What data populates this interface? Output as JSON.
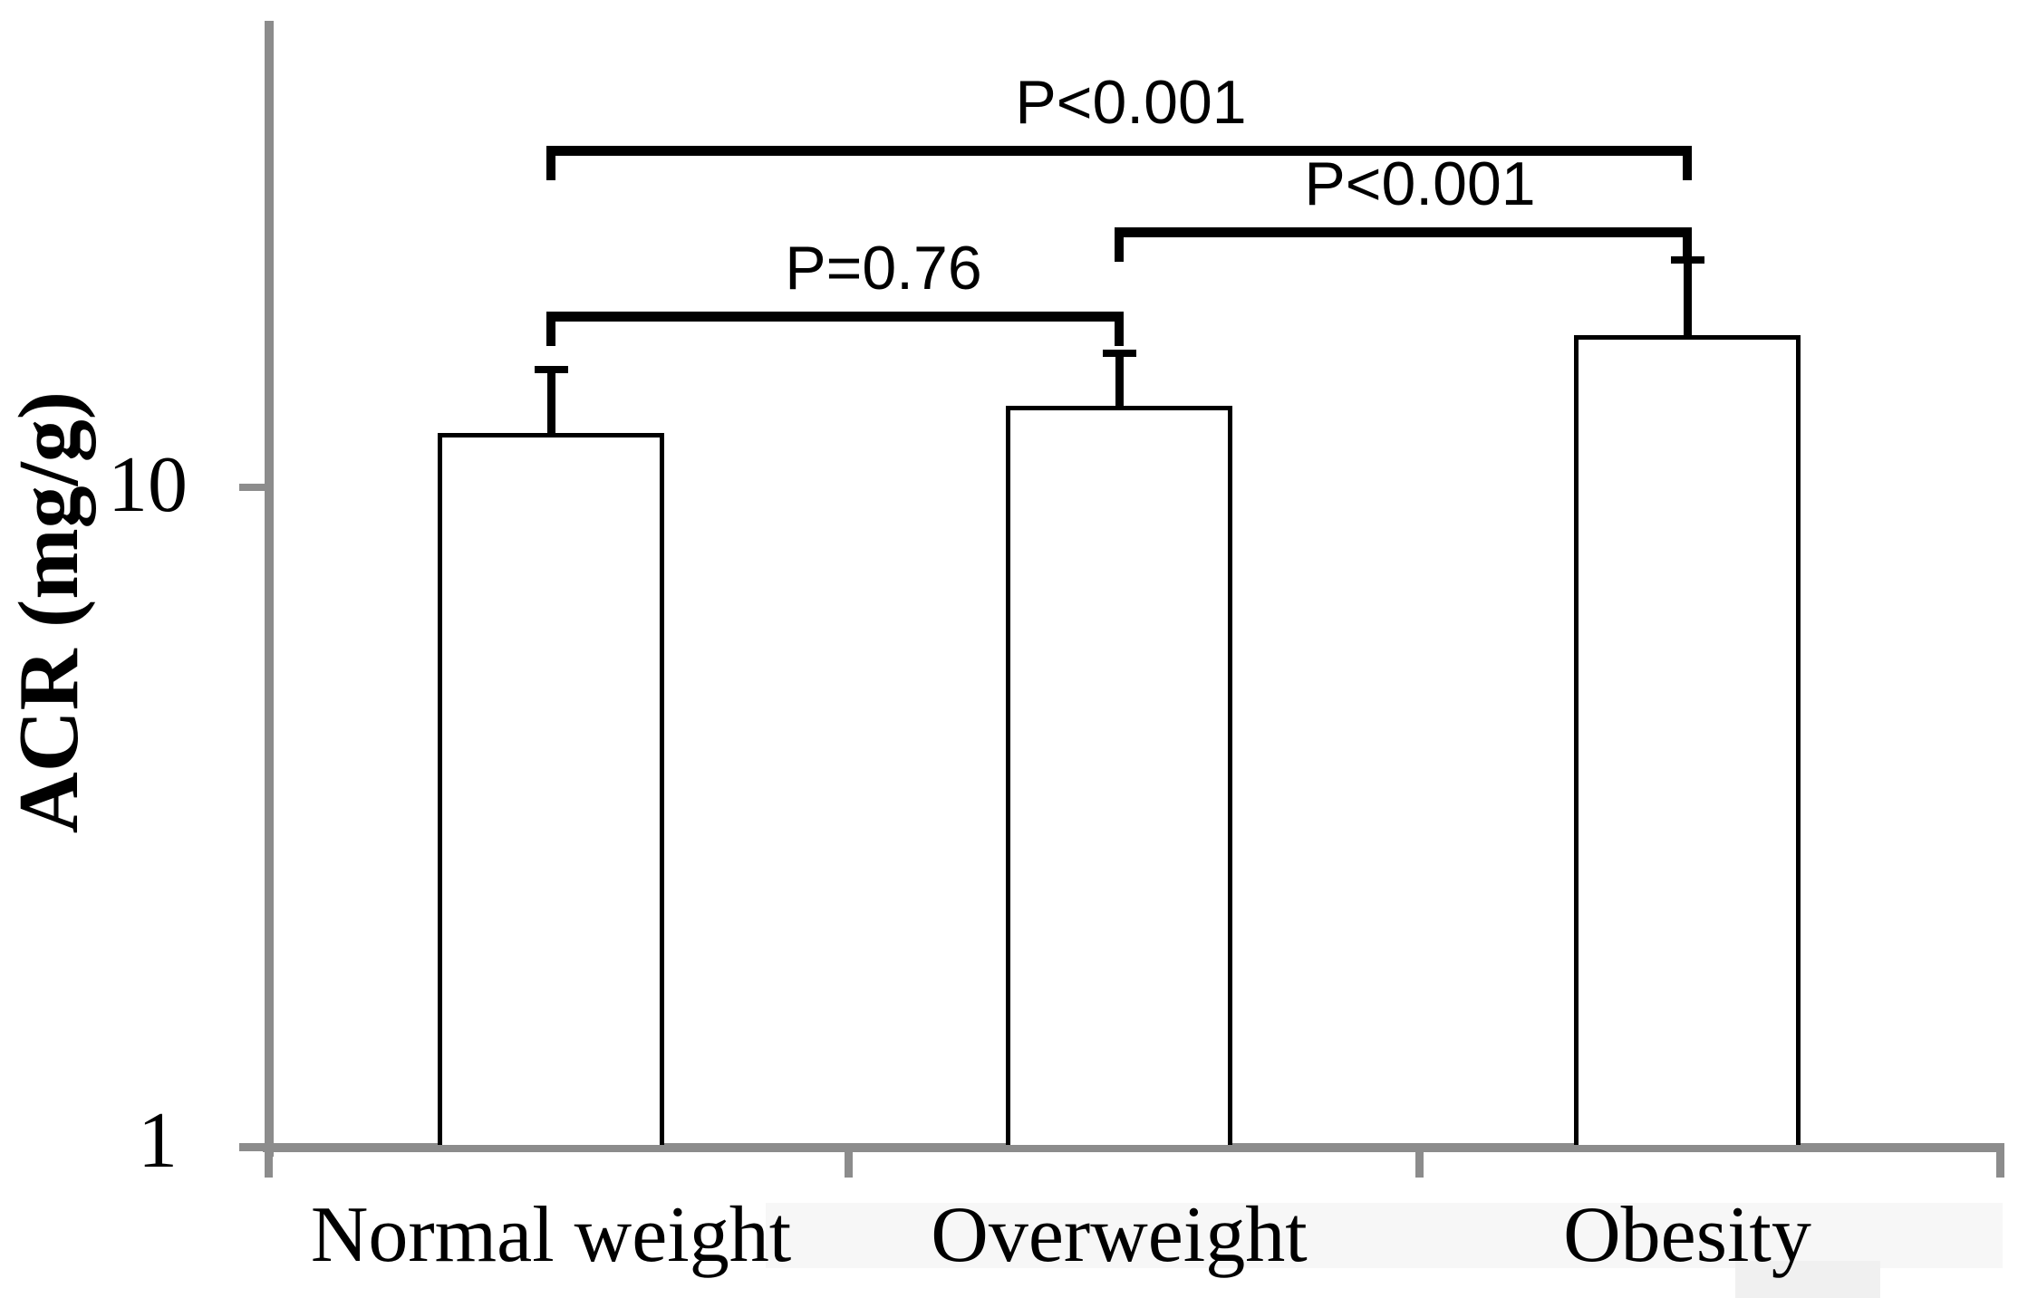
{
  "chart_data": {
    "type": "bar",
    "title": "",
    "categories": [
      "Normal weight",
      "Overweight",
      "Obesity"
    ],
    "values": [
      12.1,
      13.3,
      17.0
    ],
    "error_upper_values": [
      15.3,
      16.2,
      22.4
    ],
    "xlabel": "",
    "ylabel": "ACR (mg/g)",
    "yscale": "log",
    "ylim": [
      1,
      50
    ],
    "yticks": [
      {
        "value": 1,
        "label": "1"
      },
      {
        "value": 10,
        "label": "10"
      }
    ],
    "grid": false,
    "legend": false,
    "bar_fill": "#ffffff",
    "bar_border": "#000000",
    "error_bar_color": "#000000",
    "bracket_color": "#000000",
    "axis_color": "#8c8c8c",
    "text_color": "#000000",
    "significance_brackets": [
      {
        "between": [
          "Normal weight",
          "Overweight"
        ],
        "label": "P=0.76"
      },
      {
        "between": [
          "Overweight",
          "Obesity"
        ],
        "label": "P<0.001"
      },
      {
        "between": [
          "Normal weight",
          "Obesity"
        ],
        "label": "P<0.001"
      }
    ]
  }
}
